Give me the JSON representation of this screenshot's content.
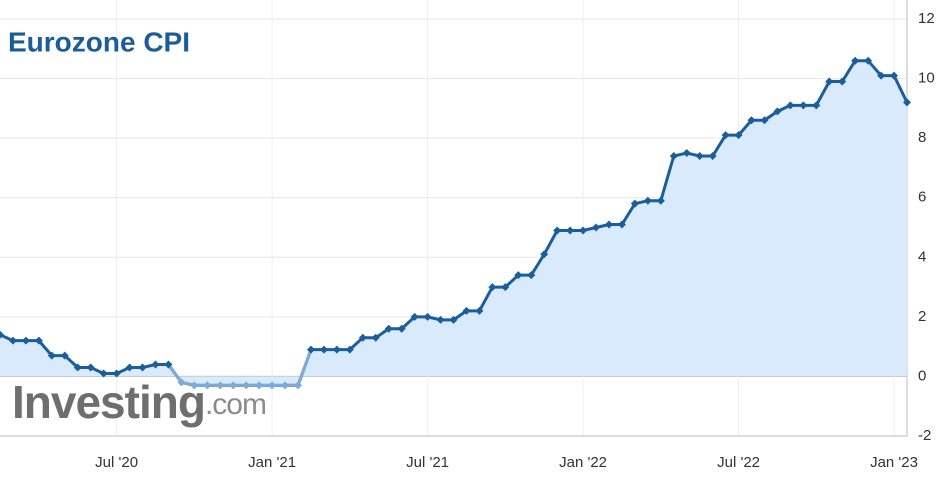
{
  "chart_data": {
    "type": "line",
    "title": "Eurozone CPI",
    "watermark_main": "Investing",
    "watermark_suffix": ".com",
    "categories": [
      null,
      null,
      null,
      null,
      null,
      null,
      null,
      null,
      null,
      "Jul '20",
      null,
      null,
      null,
      null,
      null,
      null,
      null,
      null,
      null,
      null,
      null,
      "Jan '21",
      null,
      null,
      null,
      null,
      null,
      null,
      null,
      null,
      null,
      null,
      null,
      "Jul '21",
      null,
      null,
      null,
      null,
      null,
      null,
      null,
      null,
      null,
      null,
      null,
      "Jan '22",
      null,
      null,
      null,
      null,
      null,
      null,
      null,
      null,
      null,
      null,
      null,
      "Jul '22",
      null,
      null,
      null,
      null,
      null,
      null,
      null,
      null,
      null,
      null,
      null,
      "Jan '23",
      null
    ],
    "series": [
      {
        "name": "Eurozone CPI",
        "color": "#1c5d9c",
        "negative_color": "#7eaad6",
        "fill": "#d8eafc",
        "values": [
          1.4,
          1.2,
          1.2,
          1.2,
          0.7,
          0.7,
          0.3,
          0.3,
          0.1,
          0.1,
          0.3,
          0.3,
          0.4,
          0.4,
          -0.2,
          -0.3,
          -0.3,
          -0.3,
          -0.3,
          -0.3,
          -0.3,
          -0.3,
          -0.3,
          -0.3,
          0.9,
          0.9,
          0.9,
          0.9,
          1.3,
          1.3,
          1.6,
          1.6,
          2.0,
          2.0,
          1.9,
          1.9,
          2.2,
          2.2,
          3.0,
          3.0,
          3.4,
          3.4,
          4.1,
          4.9,
          4.9,
          4.9,
          5.0,
          5.1,
          5.1,
          5.8,
          5.9,
          5.9,
          7.4,
          7.5,
          7.4,
          7.4,
          8.1,
          8.1,
          8.6,
          8.6,
          8.9,
          9.1,
          9.1,
          9.1,
          9.9,
          9.9,
          10.6,
          10.6,
          10.1,
          10.1,
          9.2
        ]
      }
    ],
    "ylim": [
      -2,
      12
    ],
    "yticks": [
      -2,
      0,
      2,
      4,
      6,
      8,
      10,
      12
    ],
    "grid": true
  }
}
